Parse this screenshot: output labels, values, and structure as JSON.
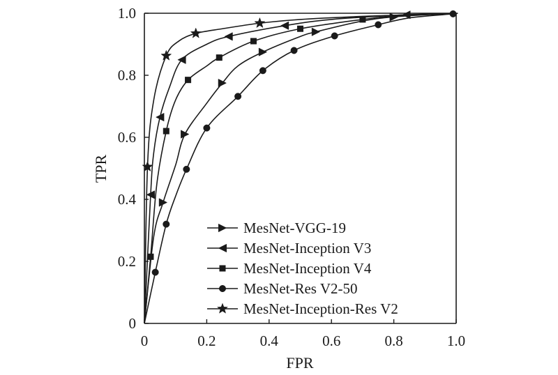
{
  "chart_data": {
    "type": "line",
    "title": "",
    "xlabel": "FPR",
    "ylabel": "TPR",
    "xlim": [
      0,
      1.0
    ],
    "ylim": [
      0,
      1.0
    ],
    "xticks": [
      0,
      0.2,
      0.4,
      0.6,
      0.8,
      1.0
    ],
    "xtick_labels": [
      "0",
      "0.2",
      "0.4",
      "0.6",
      "0.8",
      "1.0"
    ],
    "yticks": [
      0,
      0.2,
      0.4,
      0.6,
      0.8,
      1.0
    ],
    "ytick_labels": [
      "0",
      "0.2",
      "0.4",
      "0.6",
      "0.8",
      "1.0"
    ],
    "grid": false,
    "legend_position": "bottom-right",
    "series": [
      {
        "name": "MesNet-VGG-19",
        "marker": "triangle-right",
        "points": [
          [
            0,
            0
          ],
          [
            0.03,
            0.28
          ],
          [
            0.06,
            0.39
          ],
          [
            0.1,
            0.51
          ],
          [
            0.13,
            0.61
          ],
          [
            0.2,
            0.71
          ],
          [
            0.25,
            0.775
          ],
          [
            0.3,
            0.83
          ],
          [
            0.38,
            0.875
          ],
          [
            0.5,
            0.925
          ],
          [
            0.55,
            0.94
          ],
          [
            0.7,
            0.975
          ],
          [
            0.82,
            0.99
          ],
          [
            1.0,
            1.0
          ]
        ],
        "marker_x": [
          0.06,
          0.13,
          0.25,
          0.38,
          0.55,
          0.8
        ]
      },
      {
        "name": "MesNet-Inception V3",
        "marker": "triangle-left",
        "points": [
          [
            0,
            0
          ],
          [
            0.02,
            0.415
          ],
          [
            0.03,
            0.55
          ],
          [
            0.05,
            0.665
          ],
          [
            0.08,
            0.76
          ],
          [
            0.12,
            0.85
          ],
          [
            0.2,
            0.9
          ],
          [
            0.27,
            0.925
          ],
          [
            0.45,
            0.96
          ],
          [
            0.6,
            0.98
          ],
          [
            0.84,
            0.995
          ],
          [
            1.0,
            1.0
          ]
        ],
        "marker_x": [
          0.02,
          0.05,
          0.12,
          0.27,
          0.45,
          0.84
        ]
      },
      {
        "name": "MesNet-Inception V4",
        "marker": "square",
        "points": [
          [
            0,
            0
          ],
          [
            0.02,
            0.215
          ],
          [
            0.04,
            0.45
          ],
          [
            0.07,
            0.62
          ],
          [
            0.1,
            0.72
          ],
          [
            0.14,
            0.785
          ],
          [
            0.2,
            0.83
          ],
          [
            0.24,
            0.857
          ],
          [
            0.35,
            0.91
          ],
          [
            0.5,
            0.95
          ],
          [
            0.7,
            0.98
          ],
          [
            0.8,
            0.99
          ],
          [
            1.0,
            1.0
          ]
        ],
        "marker_x": [
          0.02,
          0.07,
          0.14,
          0.24,
          0.35,
          0.5,
          0.7
        ]
      },
      {
        "name": "MesNet-Res V2-50",
        "marker": "circle",
        "points": [
          [
            0,
            0
          ],
          [
            0.035,
            0.165
          ],
          [
            0.07,
            0.32
          ],
          [
            0.1,
            0.41
          ],
          [
            0.135,
            0.497
          ],
          [
            0.2,
            0.63
          ],
          [
            0.3,
            0.732
          ],
          [
            0.38,
            0.815
          ],
          [
            0.48,
            0.88
          ],
          [
            0.61,
            0.927
          ],
          [
            0.75,
            0.963
          ],
          [
            0.85,
            0.985
          ],
          [
            0.99,
            0.998
          ],
          [
            1.0,
            1.0
          ]
        ],
        "marker_x": [
          0.035,
          0.07,
          0.135,
          0.2,
          0.3,
          0.38,
          0.48,
          0.61,
          0.75,
          0.99
        ]
      },
      {
        "name": "MesNet-Inception-Res V2",
        "marker": "star",
        "points": [
          [
            0,
            0
          ],
          [
            0.01,
            0.505
          ],
          [
            0.03,
            0.72
          ],
          [
            0.07,
            0.863
          ],
          [
            0.11,
            0.91
          ],
          [
            0.165,
            0.935
          ],
          [
            0.25,
            0.95
          ],
          [
            0.37,
            0.968
          ],
          [
            0.5,
            0.98
          ],
          [
            0.7,
            0.99
          ],
          [
            0.85,
            0.995
          ],
          [
            1.0,
            1.0
          ]
        ],
        "marker_x": [
          0.01,
          0.07,
          0.165,
          0.37
        ]
      }
    ]
  }
}
